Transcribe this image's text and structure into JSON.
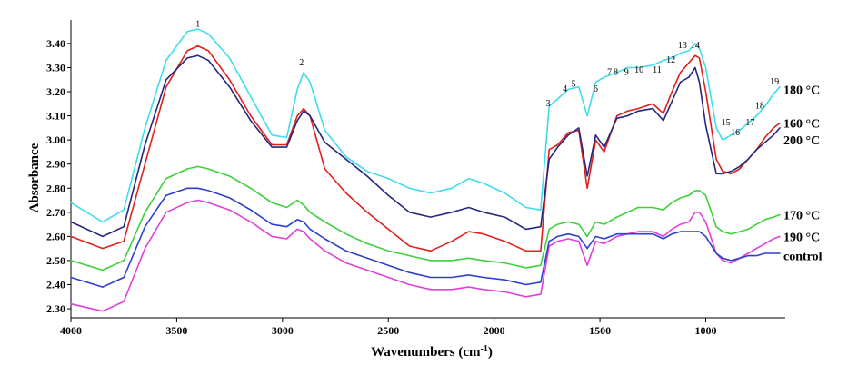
{
  "chart_data": {
    "type": "line",
    "title": "",
    "xlabel": "Wavenumbers (cm",
    "xlabel_sup": "-1",
    "xlabel_close": ")",
    "ylabel": "Absorbance",
    "x_reversed": true,
    "xlim": [
      4000,
      650
    ],
    "ylim": [
      2.27,
      3.46
    ],
    "x_ticks": [
      "4000",
      "3500",
      "3000",
      "2500",
      "2000",
      "1500",
      "1000"
    ],
    "y_ticks": [
      "2.30",
      "2.40",
      "2.50",
      "2.60",
      "2.70",
      "2.80",
      "2.90",
      "3.00",
      "3.10",
      "3.20",
      "3.30",
      "3.40"
    ],
    "x_points": [
      4000,
      3850,
      3750,
      3650,
      3550,
      3450,
      3400,
      3350,
      3250,
      3150,
      3050,
      2980,
      2930,
      2900,
      2870,
      2800,
      2700,
      2600,
      2500,
      2400,
      2300,
      2200,
      2120,
      2050,
      1950,
      1850,
      1780,
      1740,
      1700,
      1650,
      1600,
      1560,
      1520,
      1480,
      1420,
      1370,
      1320,
      1250,
      1200,
      1160,
      1120,
      1080,
      1050,
      1030,
      1000,
      950,
      920,
      880,
      840,
      800,
      760,
      720,
      680,
      650
    ],
    "series": [
      {
        "name": "180 °C",
        "color": "#40dcec",
        "values": [
          2.74,
          2.66,
          2.71,
          3.05,
          3.33,
          3.45,
          3.46,
          3.44,
          3.34,
          3.18,
          3.02,
          3.01,
          3.21,
          3.28,
          3.24,
          3.04,
          2.93,
          2.87,
          2.84,
          2.8,
          2.78,
          2.8,
          2.84,
          2.82,
          2.78,
          2.72,
          2.71,
          3.14,
          3.17,
          3.21,
          3.22,
          3.1,
          3.24,
          3.26,
          3.28,
          3.3,
          3.3,
          3.31,
          3.33,
          3.34,
          3.36,
          3.37,
          3.4,
          3.38,
          3.3,
          3.05,
          3.0,
          3.02,
          3.04,
          3.07,
          3.1,
          3.14,
          3.19,
          3.22
        ]
      },
      {
        "name": "160 °C",
        "color": "#e0201c",
        "values": [
          2.6,
          2.55,
          2.58,
          2.9,
          3.22,
          3.37,
          3.39,
          3.37,
          3.25,
          3.1,
          2.98,
          2.98,
          3.1,
          3.13,
          3.1,
          2.88,
          2.78,
          2.7,
          2.63,
          2.56,
          2.54,
          2.58,
          2.62,
          2.61,
          2.58,
          2.54,
          2.54,
          2.96,
          2.98,
          3.03,
          3.04,
          2.8,
          3.0,
          2.95,
          3.1,
          3.12,
          3.13,
          3.15,
          3.11,
          3.2,
          3.28,
          3.32,
          3.35,
          3.34,
          3.2,
          2.92,
          2.87,
          2.86,
          2.88,
          2.92,
          2.96,
          3.01,
          3.05,
          3.07
        ]
      },
      {
        "name": "200 °C",
        "color": "#26277e",
        "values": [
          2.66,
          2.6,
          2.64,
          2.98,
          3.25,
          3.34,
          3.35,
          3.33,
          3.22,
          3.08,
          2.97,
          2.97,
          3.08,
          3.12,
          3.1,
          2.99,
          2.92,
          2.85,
          2.77,
          2.7,
          2.68,
          2.7,
          2.72,
          2.7,
          2.68,
          2.63,
          2.64,
          2.92,
          2.97,
          3.02,
          3.05,
          2.85,
          3.02,
          2.97,
          3.09,
          3.1,
          3.12,
          3.13,
          3.08,
          3.16,
          3.24,
          3.26,
          3.3,
          3.24,
          3.06,
          2.86,
          2.86,
          2.87,
          2.89,
          2.92,
          2.96,
          2.99,
          3.02,
          3.05
        ]
      },
      {
        "name": "170 °C",
        "color": "#3ed03a",
        "values": [
          2.5,
          2.46,
          2.5,
          2.7,
          2.84,
          2.88,
          2.89,
          2.88,
          2.85,
          2.8,
          2.74,
          2.72,
          2.75,
          2.73,
          2.7,
          2.66,
          2.61,
          2.57,
          2.54,
          2.52,
          2.5,
          2.5,
          2.51,
          2.5,
          2.49,
          2.47,
          2.48,
          2.63,
          2.65,
          2.66,
          2.65,
          2.6,
          2.66,
          2.65,
          2.68,
          2.7,
          2.72,
          2.72,
          2.71,
          2.74,
          2.76,
          2.77,
          2.79,
          2.79,
          2.77,
          2.64,
          2.62,
          2.61,
          2.62,
          2.63,
          2.65,
          2.67,
          2.68,
          2.69
        ]
      },
      {
        "name": "190 °C",
        "color": "#e040d8",
        "values": [
          2.32,
          2.29,
          2.33,
          2.55,
          2.7,
          2.74,
          2.75,
          2.74,
          2.71,
          2.66,
          2.6,
          2.59,
          2.63,
          2.62,
          2.59,
          2.54,
          2.49,
          2.46,
          2.43,
          2.4,
          2.38,
          2.38,
          2.39,
          2.38,
          2.37,
          2.35,
          2.36,
          2.56,
          2.58,
          2.59,
          2.58,
          2.48,
          2.58,
          2.57,
          2.6,
          2.61,
          2.62,
          2.62,
          2.6,
          2.63,
          2.65,
          2.66,
          2.7,
          2.7,
          2.66,
          2.53,
          2.5,
          2.49,
          2.51,
          2.53,
          2.55,
          2.57,
          2.59,
          2.6
        ]
      },
      {
        "name": "control",
        "color": "#2d3fcf",
        "values": [
          2.43,
          2.39,
          2.43,
          2.64,
          2.77,
          2.8,
          2.8,
          2.79,
          2.76,
          2.71,
          2.65,
          2.64,
          2.67,
          2.66,
          2.63,
          2.59,
          2.54,
          2.51,
          2.48,
          2.45,
          2.43,
          2.43,
          2.44,
          2.43,
          2.42,
          2.4,
          2.41,
          2.58,
          2.6,
          2.61,
          2.6,
          2.55,
          2.6,
          2.59,
          2.61,
          2.61,
          2.61,
          2.61,
          2.59,
          2.61,
          2.62,
          2.62,
          2.62,
          2.62,
          2.6,
          2.53,
          2.51,
          2.5,
          2.51,
          2.52,
          2.52,
          2.53,
          2.53,
          2.53
        ]
      }
    ],
    "series_labels": [
      {
        "text": "180 °C",
        "y": 3.21
      },
      {
        "text": "160 °C",
        "y": 3.07
      },
      {
        "text": "200 °C",
        "y": 3.0
      },
      {
        "text": "170 °C",
        "y": 2.69
      },
      {
        "text": "190 °C",
        "y": 2.6
      },
      {
        "text": "control",
        "y": 2.52
      }
    ],
    "peak_labels": [
      {
        "text": "1",
        "x": 3400,
        "y": 3.47
      },
      {
        "text": "2",
        "x": 2910,
        "y": 3.31
      },
      {
        "text": "3",
        "x": 1745,
        "y": 3.14
      },
      {
        "text": "4",
        "x": 1665,
        "y": 3.2
      },
      {
        "text": "5",
        "x": 1625,
        "y": 3.22
      },
      {
        "text": "6",
        "x": 1520,
        "y": 3.2
      },
      {
        "text": "7",
        "x": 1455,
        "y": 3.27
      },
      {
        "text": "8",
        "x": 1425,
        "y": 3.27
      },
      {
        "text": "9",
        "x": 1375,
        "y": 3.27
      },
      {
        "text": "10",
        "x": 1315,
        "y": 3.28
      },
      {
        "text": "11",
        "x": 1230,
        "y": 3.28
      },
      {
        "text": "12",
        "x": 1165,
        "y": 3.32
      },
      {
        "text": "13",
        "x": 1110,
        "y": 3.38
      },
      {
        "text": "14",
        "x": 1050,
        "y": 3.38
      },
      {
        "text": "15",
        "x": 905,
        "y": 3.06
      },
      {
        "text": "16",
        "x": 860,
        "y": 3.02
      },
      {
        "text": "17",
        "x": 790,
        "y": 3.06
      },
      {
        "text": "18",
        "x": 745,
        "y": 3.13
      },
      {
        "text": "19",
        "x": 675,
        "y": 3.23
      }
    ]
  }
}
